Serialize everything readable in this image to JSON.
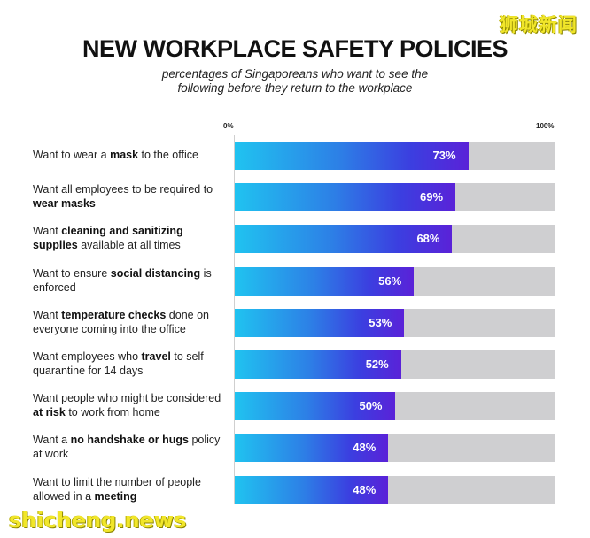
{
  "watermarks": {
    "top": "狮城新闻",
    "bottom": "shicheng.news"
  },
  "chart_data": {
    "type": "bar",
    "orientation": "horizontal",
    "title": "NEW WORKPLACE SAFETY POLICIES",
    "subtitle_lines": [
      "percentages of Singaporeans who want to see the",
      "following before they return to the workplace"
    ],
    "axis": {
      "min_label": "0%",
      "max_label": "100%",
      "xlim": [
        0,
        100
      ]
    },
    "categories": [
      [
        {
          "t": "Want to wear a "
        },
        {
          "t": "mask",
          "b": true
        },
        {
          "t": " to the office"
        }
      ],
      [
        {
          "t": "Want all employees to be required to "
        },
        {
          "t": "wear masks",
          "b": true
        }
      ],
      [
        {
          "t": "Want "
        },
        {
          "t": "cleaning and sanitizing supplies",
          "b": true
        },
        {
          "t": " available at all times"
        }
      ],
      [
        {
          "t": "Want to ensure "
        },
        {
          "t": "social distancing",
          "b": true
        },
        {
          "t": " is enforced"
        }
      ],
      [
        {
          "t": "Want "
        },
        {
          "t": "temperature checks",
          "b": true
        },
        {
          "t": " done on everyone coming into the office"
        }
      ],
      [
        {
          "t": "Want employees who "
        },
        {
          "t": "travel",
          "b": true
        },
        {
          "t": " to self-quarantine for 14 days"
        }
      ],
      [
        {
          "t": "Want people who might be considered "
        },
        {
          "t": "at risk",
          "b": true
        },
        {
          "t": " to work from home"
        }
      ],
      [
        {
          "t": "Want a "
        },
        {
          "t": "no handshake or hugs",
          "b": true
        },
        {
          "t": " policy at work"
        }
      ],
      [
        {
          "t": "Want to limit the number of people allowed in a "
        },
        {
          "t": "meeting",
          "b": true
        }
      ]
    ],
    "values": [
      73,
      69,
      68,
      56,
      53,
      52,
      50,
      48,
      48
    ],
    "value_labels": [
      "73%",
      "69%",
      "68%",
      "56%",
      "53%",
      "52%",
      "50%",
      "48%",
      "48%"
    ],
    "colors": {
      "gradient_start": "#20c3f0",
      "gradient_end": "#5a22d8",
      "track": "#cfcfd1"
    }
  }
}
